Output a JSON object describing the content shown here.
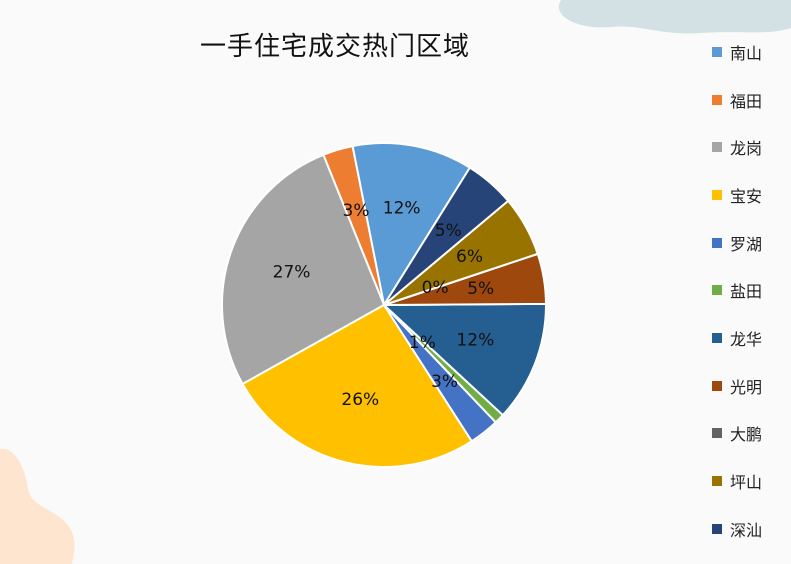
{
  "colors": {
    "background": "#fafafa",
    "deco_top_right": "#d3e1e4",
    "deco_bottom_left": "#fde5cf",
    "slice_border": "#ffffff"
  },
  "chart_data": {
    "type": "pie",
    "title": "一手住宅成交热门区域",
    "legend_position": "right",
    "slices": [
      {
        "label": "南山",
        "value": 12,
        "data_label": "12%",
        "color": "#5b9bd5"
      },
      {
        "label": "福田",
        "value": 3,
        "data_label": "3%",
        "color": "#ed7d31"
      },
      {
        "label": "龙岗",
        "value": 27,
        "data_label": "27%",
        "color": "#a5a5a5"
      },
      {
        "label": "宝安",
        "value": 26,
        "data_label": "26%",
        "color": "#ffc000"
      },
      {
        "label": "罗湖",
        "value": 3,
        "data_label": "3%",
        "color": "#4472c4"
      },
      {
        "label": "盐田",
        "value": 1,
        "data_label": "1%",
        "color": "#70ad47"
      },
      {
        "label": "龙华",
        "value": 12,
        "data_label": "12%",
        "color": "#255e91"
      },
      {
        "label": "光明",
        "value": 5,
        "data_label": "5%",
        "color": "#9e480e"
      },
      {
        "label": "大鹏",
        "value": 0,
        "data_label": "0%",
        "color": "#636363"
      },
      {
        "label": "坪山",
        "value": 6,
        "data_label": "6%",
        "color": "#997300"
      },
      {
        "label": "深汕",
        "value": 5,
        "data_label": "5%",
        "color": "#264478"
      }
    ]
  }
}
